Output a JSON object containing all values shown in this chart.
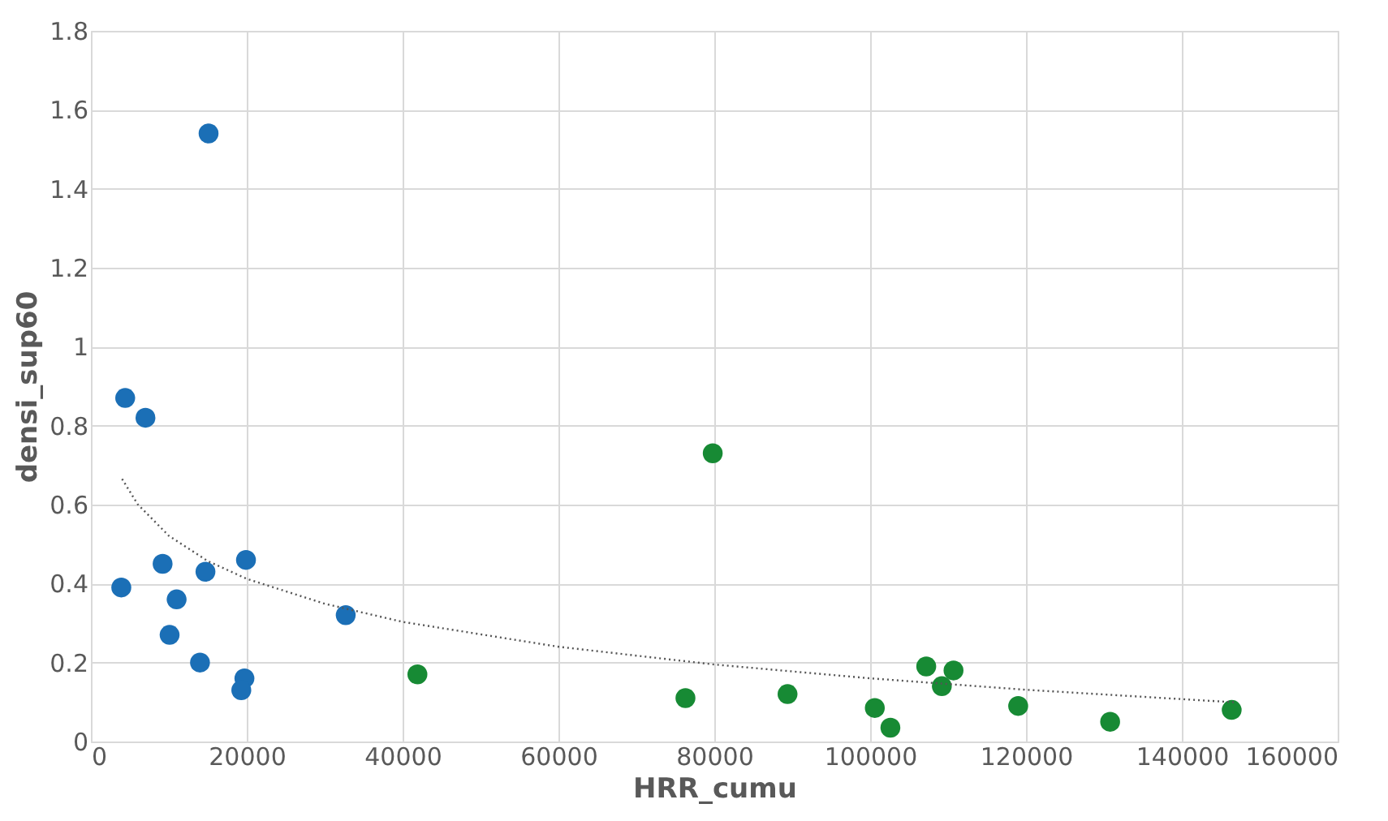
{
  "chart_data": {
    "type": "scatter",
    "xlabel": "HRR_cumu",
    "ylabel": "densi_sup60",
    "xlim": [
      0,
      160000
    ],
    "xticks": [
      0,
      20000,
      40000,
      60000,
      80000,
      100000,
      120000,
      140000,
      160000
    ],
    "ylim": [
      0,
      1.8
    ],
    "yticks": [
      {
        "value": 0,
        "label": "0"
      },
      {
        "value": 0.2,
        "label": "0.2"
      },
      {
        "value": 0.4,
        "label": "0.4"
      },
      {
        "value": 0.6,
        "label": "0.6"
      },
      {
        "value": 0.8,
        "label": "0.8"
      },
      {
        "value": 1,
        "label": "1"
      },
      {
        "value": 1.2,
        "label": "1.2"
      },
      {
        "value": 1.4,
        "label": "1.4"
      },
      {
        "value": 1.6,
        "label": "1.6"
      },
      {
        "value": 1.8,
        "label": "1.8"
      }
    ],
    "grid": true,
    "legend": false,
    "marker": "circle",
    "series": [
      {
        "color": "#1b6fb6",
        "x": [
          4400,
          7000,
          15100,
          3900,
          9200,
          11000,
          10100,
          14700,
          19900,
          14000,
          19700,
          19300,
          32700
        ],
        "values": [
          0.87,
          0.82,
          1.54,
          0.39,
          0.45,
          0.36,
          0.27,
          0.43,
          0.46,
          0.2,
          0.16,
          0.13,
          0.32
        ]
      },
      {
        "color": "#178a34",
        "x": [
          41900,
          76300,
          79800,
          89400,
          100600,
          102600,
          107200,
          109200,
          110700,
          119000,
          130800,
          146400
        ],
        "values": [
          0.17,
          0.11,
          0.73,
          0.12,
          0.085,
          0.035,
          0.19,
          0.14,
          0.18,
          0.09,
          0.05,
          0.08
        ]
      },
      {
        "type": "line",
        "color": "#555555",
        "line_style": "dotted",
        "marker": "none",
        "x": [
          4000,
          6000,
          10000,
          15000,
          20000,
          30000,
          40000,
          60000,
          80000,
          100000,
          120000,
          147000
        ],
        "values": [
          0.665,
          0.601,
          0.521,
          0.457,
          0.412,
          0.349,
          0.303,
          0.24,
          0.195,
          0.16,
          0.131,
          0.099
        ]
      }
    ]
  }
}
